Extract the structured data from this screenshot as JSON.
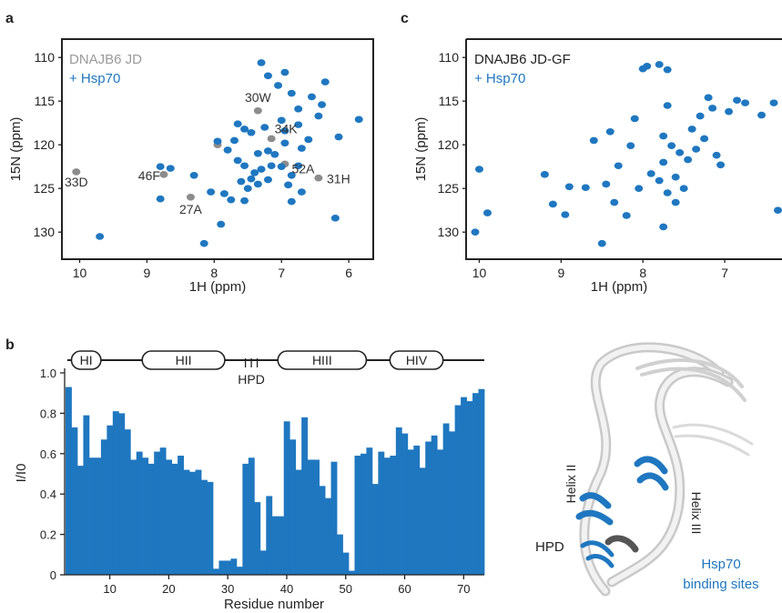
{
  "panel_labels": {
    "a": "a",
    "b": "b",
    "c": "c"
  },
  "colors": {
    "blue": "#1f77c0",
    "gray": "#9a9a9a",
    "peak_gray": "#8c8c8c",
    "axis": "#222222"
  },
  "chart_data": [
    {
      "id": "panel-a",
      "type": "scatter",
      "title": "",
      "xlabel": "1H (ppm)",
      "ylabel": "15N (ppm)",
      "xlim": [
        10.25,
        5.65
      ],
      "ylim": [
        108,
        133
      ],
      "xticks": [
        10,
        9,
        8,
        7,
        6
      ],
      "yticks": [
        110,
        115,
        120,
        125,
        130
      ],
      "legend": [
        "DNAJB6 JD",
        "+ Hsp70"
      ],
      "series": [
        {
          "name": "DNAJB6 JD",
          "color": "gray",
          "points": [
            [
              10.05,
              123.1
            ],
            [
              8.75,
              123.4
            ],
            [
              8.35,
              126.0
            ],
            [
              7.35,
              116.1
            ],
            [
              7.15,
              119.3
            ],
            [
              6.95,
              122.2
            ],
            [
              6.45,
              123.8
            ],
            [
              7.95,
              120.0
            ]
          ]
        },
        {
          "name": "+ Hsp70",
          "color": "blue",
          "points": [
            [
              9.7,
              130.5
            ],
            [
              8.8,
              122.5
            ],
            [
              8.65,
              122.7
            ],
            [
              8.8,
              126.2
            ],
            [
              8.3,
              123.5
            ],
            [
              8.15,
              131.3
            ],
            [
              8.05,
              125.4
            ],
            [
              7.9,
              129.1
            ],
            [
              7.95,
              119.6
            ],
            [
              7.8,
              120.6
            ],
            [
              7.7,
              119.5
            ],
            [
              7.65,
              121.8
            ],
            [
              7.55,
              122.4
            ],
            [
              7.5,
              125.0
            ],
            [
              7.45,
              123.9
            ],
            [
              7.35,
              124.5
            ],
            [
              7.3,
              122.8
            ],
            [
              7.2,
              124.0
            ],
            [
              7.15,
              122.4
            ],
            [
              7.1,
              121.1
            ],
            [
              7.0,
              122.5
            ],
            [
              6.85,
              123.5
            ],
            [
              6.75,
              122.4
            ],
            [
              6.7,
              120.4
            ],
            [
              6.6,
              119.4
            ],
            [
              6.55,
              114.5
            ],
            [
              6.45,
              116.7
            ],
            [
              6.4,
              115.4
            ],
            [
              6.35,
              112.8
            ],
            [
              6.2,
              128.4
            ],
            [
              6.15,
              119.1
            ],
            [
              5.85,
              117.1
            ],
            [
              7.3,
              110.6
            ],
            [
              7.2,
              112.1
            ],
            [
              7.05,
              113.2
            ],
            [
              6.95,
              111.7
            ],
            [
              6.85,
              114.1
            ],
            [
              6.75,
              115.9
            ],
            [
              7.55,
              118.2
            ],
            [
              7.45,
              118.6
            ],
            [
              7.25,
              118.0
            ],
            [
              6.95,
              118.4
            ],
            [
              6.75,
              117.7
            ],
            [
              7.65,
              117.6
            ],
            [
              7.85,
              125.6
            ],
            [
              7.75,
              126.3
            ],
            [
              7.4,
              123.2
            ],
            [
              7.2,
              120.7
            ],
            [
              6.95,
              119.8
            ],
            [
              6.7,
              125.4
            ],
            [
              6.85,
              126.5
            ],
            [
              7.55,
              126.4
            ],
            [
              7.6,
              124.2
            ],
            [
              6.9,
              124.6
            ],
            [
              7.35,
              121.0
            ],
            [
              7.0,
              117.2
            ]
          ]
        }
      ],
      "annotations": [
        {
          "text": "33D",
          "x": 10.05,
          "y": 123.1
        },
        {
          "text": "46F",
          "x": 8.75,
          "y": 123.4
        },
        {
          "text": "27A",
          "x": 8.35,
          "y": 126.0
        },
        {
          "text": "30W",
          "x": 7.35,
          "y": 116.1
        },
        {
          "text": "34K",
          "x": 7.15,
          "y": 119.3
        },
        {
          "text": "52A",
          "x": 6.95,
          "y": 122.2
        },
        {
          "text": "31H",
          "x": 6.45,
          "y": 123.8
        }
      ]
    },
    {
      "id": "panel-c",
      "type": "scatter",
      "title": "",
      "xlabel": "1H (ppm)",
      "ylabel": "15N (ppm)",
      "xlim": [
        10.15,
        6.3
      ],
      "ylim": [
        108,
        133
      ],
      "xticks": [
        10,
        9,
        8,
        7
      ],
      "yticks": [
        110,
        115,
        120,
        125,
        130
      ],
      "legend": [
        "DNAJB6 JD-GF",
        "+ Hsp70"
      ],
      "series": [
        {
          "name": "+ Hsp70",
          "color": "blue",
          "points": [
            [
              10.05,
              130.0
            ],
            [
              10.0,
              122.8
            ],
            [
              9.9,
              127.8
            ],
            [
              9.2,
              123.4
            ],
            [
              9.1,
              126.8
            ],
            [
              8.95,
              128.0
            ],
            [
              8.9,
              124.8
            ],
            [
              8.7,
              124.9
            ],
            [
              8.5,
              131.3
            ],
            [
              8.45,
              124.5
            ],
            [
              8.35,
              126.6
            ],
            [
              8.3,
              122.4
            ],
            [
              8.15,
              120.1
            ],
            [
              8.2,
              128.1
            ],
            [
              8.05,
              125.0
            ],
            [
              8.0,
              111.3
            ],
            [
              7.95,
              111.0
            ],
            [
              7.8,
              110.8
            ],
            [
              7.7,
              111.4
            ],
            [
              7.7,
              115.5
            ],
            [
              7.75,
              119.0
            ],
            [
              7.65,
              120.1
            ],
            [
              7.55,
              120.9
            ],
            [
              7.9,
              123.3
            ],
            [
              7.8,
              124.1
            ],
            [
              7.7,
              125.5
            ],
            [
              7.6,
              126.6
            ],
            [
              7.75,
              122.0
            ],
            [
              7.6,
              123.7
            ],
            [
              7.5,
              125.0
            ],
            [
              7.75,
              129.4
            ],
            [
              7.4,
              118.2
            ],
            [
              7.3,
              116.7
            ],
            [
              7.2,
              114.6
            ],
            [
              7.15,
              115.8
            ],
            [
              7.1,
              121.2
            ],
            [
              7.05,
              122.3
            ],
            [
              7.35,
              120.5
            ],
            [
              6.95,
              116.2
            ],
            [
              6.85,
              114.9
            ],
            [
              6.75,
              115.2
            ],
            [
              6.55,
              116.6
            ],
            [
              6.4,
              115.2
            ],
            [
              6.35,
              127.5
            ],
            [
              8.6,
              119.5
            ],
            [
              8.1,
              117.0
            ],
            [
              7.45,
              121.7
            ],
            [
              7.25,
              119.3
            ],
            [
              8.4,
              118.5
            ]
          ]
        }
      ],
      "annotations": []
    },
    {
      "id": "panel-b",
      "type": "bar",
      "title": "",
      "xlabel": "Residue number",
      "ylabel": "I/I0",
      "xlim": [
        2,
        73
      ],
      "ylim": [
        0,
        1.0
      ],
      "xticks": [
        10,
        20,
        30,
        40,
        50,
        60,
        70
      ],
      "yticks": [
        0,
        0.2,
        0.4,
        0.6,
        0.8,
        1.0
      ],
      "ytick_labels": [
        "0",
        "0.2",
        "0.4",
        "0.6",
        "0.8",
        "1.0"
      ],
      "x": [
        3,
        4,
        5,
        6,
        7,
        8,
        9,
        10,
        11,
        12,
        13,
        14,
        15,
        16,
        17,
        18,
        19,
        20,
        21,
        22,
        23,
        24,
        25,
        26,
        27,
        28,
        29,
        30,
        31,
        32,
        33,
        34,
        35,
        36,
        37,
        38,
        39,
        40,
        41,
        42,
        43,
        44,
        45,
        46,
        47,
        48,
        49,
        50,
        51,
        52,
        53,
        54,
        55,
        56,
        57,
        58,
        59,
        60,
        61,
        62,
        63,
        64,
        65,
        66,
        67,
        68,
        69,
        70,
        71,
        72,
        73
      ],
      "values": [
        0.93,
        0.73,
        0.54,
        0.79,
        0.58,
        0.58,
        0.67,
        0.74,
        0.81,
        0.8,
        0.72,
        0.57,
        0.61,
        0.58,
        0.55,
        0.61,
        0.63,
        0.57,
        0.55,
        0.59,
        0.52,
        0.51,
        0.52,
        0.47,
        0.46,
        0.03,
        0.07,
        0.07,
        0.08,
        0.04,
        0.55,
        0.58,
        0.36,
        0.12,
        0.39,
        0.29,
        0.29,
        0.76,
        0.67,
        0.52,
        0.78,
        0.57,
        0.57,
        0.44,
        0.38,
        0.56,
        0.2,
        0.11,
        0.02,
        0.59,
        0.6,
        0.63,
        0.45,
        0.61,
        0.58,
        0.59,
        0.73,
        0.7,
        0.62,
        0.64,
        0.53,
        0.66,
        0.69,
        0.62,
        0.75,
        0.71,
        0.84,
        0.88,
        0.86,
        0.9,
        0.92
      ]
    }
  ],
  "domains": [
    {
      "label": "HI",
      "start": 4,
      "end": 8
    },
    {
      "label": "HII",
      "start": 16,
      "end": 29
    },
    {
      "label": "HIII",
      "start": 39,
      "end": 53
    },
    {
      "label": "HIV",
      "start": 58,
      "end": 66
    }
  ],
  "hpd": {
    "label": "HPD",
    "residues": [
      33,
      34,
      35
    ]
  },
  "structure": {
    "helix2_label": "Helix II",
    "helix3_label": "Helix III",
    "hpd_label": "HPD",
    "sites_label_line1": "Hsp70",
    "sites_label_line2": "binding sites"
  }
}
